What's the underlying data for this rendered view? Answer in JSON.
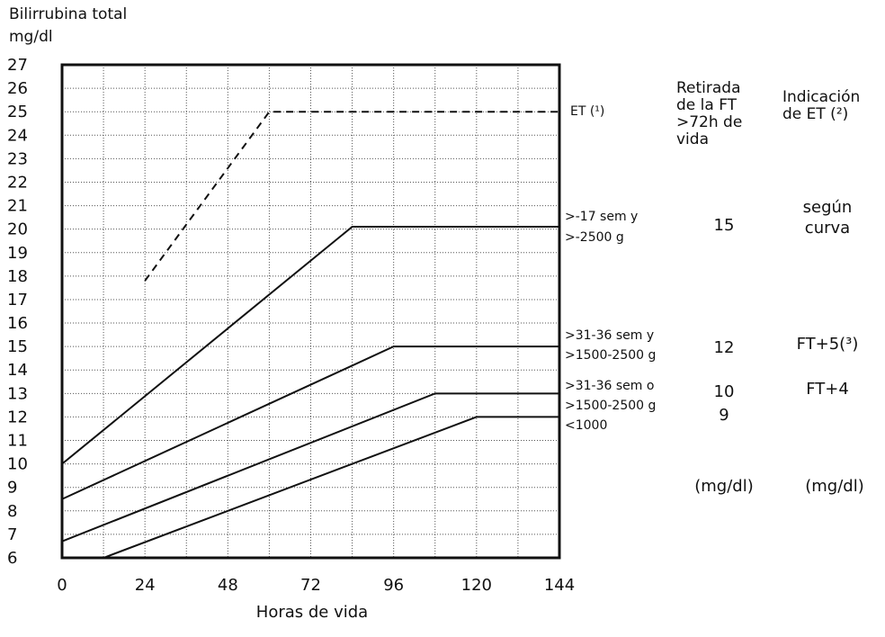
{
  "chart_data": {
    "type": "line",
    "ylabel_line1": "Bilirrubina total",
    "ylabel_line2": "mg/dl",
    "xlabel": "Horas de vida",
    "xlim": [
      0,
      144
    ],
    "ylim": [
      6,
      27
    ],
    "x_ticks": [
      0,
      24,
      48,
      72,
      96,
      120,
      144
    ],
    "y_ticks": [
      6,
      7,
      8,
      9,
      10,
      11,
      12,
      13,
      14,
      15,
      16,
      17,
      18,
      19,
      20,
      21,
      22,
      23,
      24,
      25,
      26,
      27
    ],
    "grid": true,
    "series": [
      {
        "name": "ET",
        "note": "(1)",
        "style": "dashed",
        "points": [
          [
            24,
            17.8
          ],
          [
            60,
            25
          ],
          [
            144,
            25
          ]
        ],
        "label_lines": [
          "ET (¹)"
        ]
      },
      {
        "style": "solid",
        "points": [
          [
            0,
            10
          ],
          [
            84,
            20.1
          ],
          [
            144,
            20.1
          ]
        ],
        "label_lines": [
          ">-17 sem y",
          ">-2500 g"
        ]
      },
      {
        "style": "solid",
        "points": [
          [
            0,
            8.5
          ],
          [
            96,
            15
          ],
          [
            144,
            15
          ]
        ],
        "label_lines": [
          ">31-36 sem y",
          ">1500-2500 g"
        ]
      },
      {
        "style": "solid",
        "points": [
          [
            0,
            6.7
          ],
          [
            108,
            13
          ],
          [
            144,
            13
          ]
        ],
        "label_lines": [
          ">31-36 sem o",
          ">1500-2500 g"
        ]
      },
      {
        "style": "solid",
        "points": [
          [
            12,
            6
          ],
          [
            120,
            12
          ],
          [
            144,
            12
          ]
        ],
        "label_lines": [
          "<1000"
        ]
      }
    ],
    "table": {
      "col1_header": [
        "Retirada",
        "de la FT",
        ">72h de",
        "vida"
      ],
      "col2_header": [
        "Indicación",
        "de ET (²)"
      ],
      "rows": [
        {
          "col1": "15",
          "col2_line1": "según",
          "col2_line2": "curva"
        },
        {
          "col1": "12",
          "col2": "FT+5(³)"
        },
        {
          "col1": "10",
          "col2": "FT+4"
        },
        {
          "col1": "9",
          "col2": ""
        }
      ],
      "units": [
        "(mg/dl)",
        "(mg/dl)"
      ]
    }
  },
  "colors": {
    "line": "#111111",
    "grid": "#555555",
    "background": "#ffffff"
  }
}
